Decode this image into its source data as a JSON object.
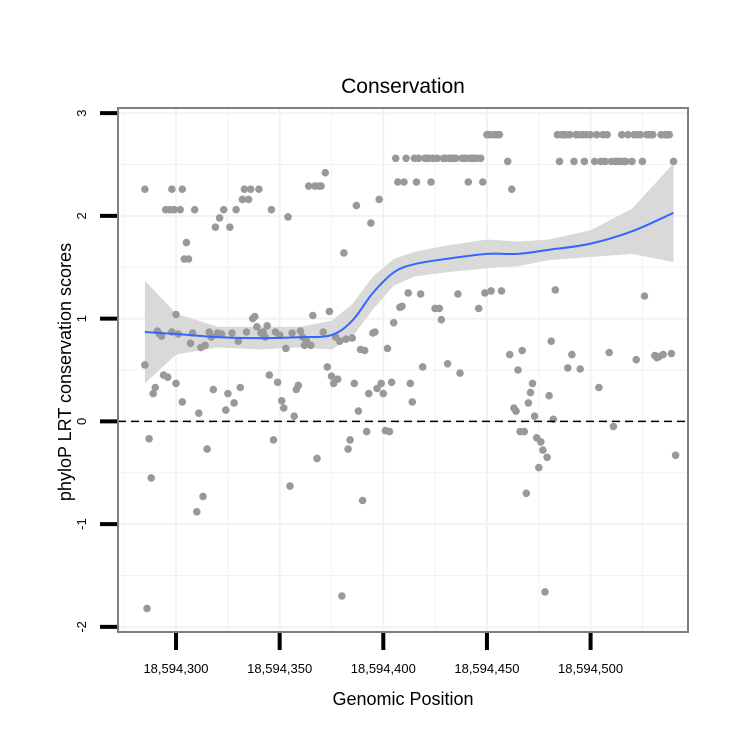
{
  "chart_data": {
    "type": "scatter",
    "title": "Conservation",
    "xlabel": "Genomic Position",
    "ylabel": "phyloP LRT conservation scores",
    "xlim": [
      18594272,
      18594547
    ],
    "ylim": [
      -2.05,
      3.05
    ],
    "x_ticks": [
      18594300,
      18594350,
      18594400,
      18594450,
      18594500
    ],
    "x_tick_labels": [
      "18,594,300",
      "18,594,350",
      "18,594,400",
      "18,594,450",
      "18,594,500"
    ],
    "y_ticks": [
      -2,
      -1,
      0,
      1,
      2,
      3
    ],
    "y_tick_labels": [
      "-2",
      "-1",
      "0",
      "1",
      "2",
      "3"
    ],
    "reference_line": {
      "y": 0,
      "style": "dashed"
    },
    "colors": {
      "points": "#999999",
      "smooth": "#3366FF",
      "ribbon": "#D9D9D9",
      "frame": "#7F7F7F",
      "grid": "#F2F2F2"
    },
    "series": [
      {
        "name": "scores",
        "points": [
          [
            18594285,
            2.26
          ],
          [
            18594285,
            0.55
          ],
          [
            18594286,
            -1.82
          ],
          [
            18594287,
            -0.17
          ],
          [
            18594288,
            -0.55
          ],
          [
            18594289,
            0.27
          ],
          [
            18594290,
            0.33
          ],
          [
            18594291,
            0.88
          ],
          [
            18594292,
            0.85
          ],
          [
            18594293,
            0.83
          ],
          [
            18594294,
            0.45
          ],
          [
            18594295,
            2.06
          ],
          [
            18594296,
            0.43
          ],
          [
            18594297,
            2.06
          ],
          [
            18594298,
            2.26
          ],
          [
            18594298,
            0.87
          ],
          [
            18594299,
            2.06
          ],
          [
            18594300,
            1.04
          ],
          [
            18594300,
            0.37
          ],
          [
            18594301,
            0.85
          ],
          [
            18594302,
            2.06
          ],
          [
            18594303,
            2.26
          ],
          [
            18594303,
            0.19
          ],
          [
            18594304,
            1.58
          ],
          [
            18594305,
            1.74
          ],
          [
            18594306,
            1.58
          ],
          [
            18594307,
            0.76
          ],
          [
            18594308,
            0.86
          ],
          [
            18594309,
            2.06
          ],
          [
            18594310,
            -0.88
          ],
          [
            18594311,
            0.08
          ],
          [
            18594312,
            0.72
          ],
          [
            18594313,
            -0.73
          ],
          [
            18594314,
            0.74
          ],
          [
            18594315,
            -0.27
          ],
          [
            18594316,
            0.87
          ],
          [
            18594317,
            0.82
          ],
          [
            18594318,
            0.31
          ],
          [
            18594319,
            1.89
          ],
          [
            18594320,
            0.86
          ],
          [
            18594321,
            1.98
          ],
          [
            18594322,
            0.85
          ],
          [
            18594323,
            2.06
          ],
          [
            18594324,
            0.11
          ],
          [
            18594325,
            0.27
          ],
          [
            18594326,
            1.89
          ],
          [
            18594327,
            0.86
          ],
          [
            18594328,
            0.18
          ],
          [
            18594329,
            2.06
          ],
          [
            18594330,
            0.78
          ],
          [
            18594331,
            0.33
          ],
          [
            18594332,
            2.16
          ],
          [
            18594333,
            2.26
          ],
          [
            18594334,
            0.87
          ],
          [
            18594335,
            2.16
          ],
          [
            18594336,
            2.26
          ],
          [
            18594337,
            1.0
          ],
          [
            18594338,
            1.02
          ],
          [
            18594339,
            0.92
          ],
          [
            18594340,
            2.26
          ],
          [
            18594341,
            0.86
          ],
          [
            18594342,
            0.87
          ],
          [
            18594343,
            0.82
          ],
          [
            18594344,
            0.93
          ],
          [
            18594345,
            0.45
          ],
          [
            18594346,
            2.06
          ],
          [
            18594347,
            -0.18
          ],
          [
            18594348,
            0.87
          ],
          [
            18594349,
            0.38
          ],
          [
            18594350,
            0.84
          ],
          [
            18594351,
            0.2
          ],
          [
            18594352,
            0.13
          ],
          [
            18594353,
            0.71
          ],
          [
            18594354,
            1.99
          ],
          [
            18594355,
            -0.63
          ],
          [
            18594356,
            0.86
          ],
          [
            18594357,
            0.05
          ],
          [
            18594358,
            0.31
          ],
          [
            18594359,
            0.35
          ],
          [
            18594360,
            0.88
          ],
          [
            18594361,
            0.82
          ],
          [
            18594362,
            0.74
          ],
          [
            18594363,
            0.78
          ],
          [
            18594364,
            2.29
          ],
          [
            18594365,
            0.74
          ],
          [
            18594366,
            1.03
          ],
          [
            18594367,
            2.29
          ],
          [
            18594368,
            -0.36
          ],
          [
            18594369,
            2.29
          ],
          [
            18594370,
            2.29
          ],
          [
            18594371,
            0.87
          ],
          [
            18594372,
            2.42
          ],
          [
            18594373,
            0.53
          ],
          [
            18594374,
            1.07
          ],
          [
            18594375,
            0.44
          ],
          [
            18594376,
            0.37
          ],
          [
            18594377,
            0.82
          ],
          [
            18594378,
            0.41
          ],
          [
            18594379,
            0.78
          ],
          [
            18594380,
            -1.7
          ],
          [
            18594381,
            1.64
          ],
          [
            18594382,
            0.8
          ],
          [
            18594383,
            -0.27
          ],
          [
            18594384,
            -0.18
          ],
          [
            18594385,
            0.81
          ],
          [
            18594386,
            0.37
          ],
          [
            18594387,
            2.1
          ],
          [
            18594388,
            0.1
          ],
          [
            18594389,
            0.7
          ],
          [
            18594390,
            -0.77
          ],
          [
            18594391,
            0.69
          ],
          [
            18594392,
            -0.1
          ],
          [
            18594393,
            0.27
          ],
          [
            18594394,
            1.93
          ],
          [
            18594395,
            0.86
          ],
          [
            18594396,
            0.87
          ],
          [
            18594397,
            0.32
          ],
          [
            18594398,
            2.16
          ],
          [
            18594399,
            0.37
          ],
          [
            18594400,
            0.27
          ],
          [
            18594401,
            -0.09
          ],
          [
            18594402,
            0.71
          ],
          [
            18594403,
            -0.1
          ],
          [
            18594404,
            0.38
          ],
          [
            18594405,
            0.96
          ],
          [
            18594406,
            2.56
          ],
          [
            18594407,
            2.33
          ],
          [
            18594408,
            1.11
          ],
          [
            18594409,
            1.12
          ],
          [
            18594410,
            2.33
          ],
          [
            18594411,
            2.56
          ],
          [
            18594412,
            1.25
          ],
          [
            18594413,
            0.37
          ],
          [
            18594414,
            0.19
          ],
          [
            18594415,
            2.56
          ],
          [
            18594416,
            2.33
          ],
          [
            18594417,
            2.56
          ],
          [
            18594418,
            1.24
          ],
          [
            18594419,
            0.53
          ],
          [
            18594420,
            2.56
          ],
          [
            18594421,
            2.56
          ],
          [
            18594422,
            2.56
          ],
          [
            18594423,
            2.33
          ],
          [
            18594424,
            2.56
          ],
          [
            18594425,
            1.1
          ],
          [
            18594426,
            2.56
          ],
          [
            18594427,
            1.1
          ],
          [
            18594428,
            0.99
          ],
          [
            18594429,
            2.56
          ],
          [
            18594430,
            2.56
          ],
          [
            18594431,
            0.56
          ],
          [
            18594432,
            2.56
          ],
          [
            18594433,
            2.56
          ],
          [
            18594434,
            2.56
          ],
          [
            18594435,
            2.56
          ],
          [
            18594436,
            1.24
          ],
          [
            18594437,
            0.47
          ],
          [
            18594438,
            2.56
          ],
          [
            18594439,
            2.56
          ],
          [
            18594440,
            2.56
          ],
          [
            18594441,
            2.33
          ],
          [
            18594442,
            2.56
          ],
          [
            18594443,
            2.56
          ],
          [
            18594444,
            2.56
          ],
          [
            18594445,
            2.56
          ],
          [
            18594446,
            1.1
          ],
          [
            18594447,
            2.56
          ],
          [
            18594448,
            2.33
          ],
          [
            18594449,
            1.25
          ],
          [
            18594450,
            2.79
          ],
          [
            18594451,
            2.79
          ],
          [
            18594452,
            1.27
          ],
          [
            18594453,
            2.79
          ],
          [
            18594454,
            2.79
          ],
          [
            18594455,
            2.79
          ],
          [
            18594456,
            2.79
          ],
          [
            18594457,
            1.27
          ],
          [
            18594460,
            2.53
          ],
          [
            18594461,
            0.65
          ],
          [
            18594462,
            2.26
          ],
          [
            18594463,
            0.13
          ],
          [
            18594464,
            0.1
          ],
          [
            18594465,
            0.5
          ],
          [
            18594466,
            -0.1
          ],
          [
            18594467,
            0.69
          ],
          [
            18594468,
            -0.1
          ],
          [
            18594469,
            -0.7
          ],
          [
            18594470,
            0.18
          ],
          [
            18594471,
            0.28
          ],
          [
            18594472,
            0.37
          ],
          [
            18594473,
            0.05
          ],
          [
            18594474,
            -0.16
          ],
          [
            18594475,
            -0.45
          ],
          [
            18594476,
            -0.2
          ],
          [
            18594477,
            -0.28
          ],
          [
            18594478,
            -1.66
          ],
          [
            18594479,
            -0.35
          ],
          [
            18594480,
            0.25
          ],
          [
            18594481,
            0.78
          ],
          [
            18594482,
            0.02
          ],
          [
            18594483,
            1.28
          ],
          [
            18594484,
            2.79
          ],
          [
            18594485,
            2.53
          ],
          [
            18594486,
            2.79
          ],
          [
            18594487,
            2.79
          ],
          [
            18594488,
            2.79
          ],
          [
            18594489,
            0.52
          ],
          [
            18594490,
            2.79
          ],
          [
            18594491,
            0.65
          ],
          [
            18594492,
            2.53
          ],
          [
            18594493,
            2.79
          ],
          [
            18594494,
            2.79
          ],
          [
            18594495,
            0.51
          ],
          [
            18594496,
            2.79
          ],
          [
            18594497,
            2.53
          ],
          [
            18594498,
            2.79
          ],
          [
            18594500,
            2.79
          ],
          [
            18594502,
            2.53
          ],
          [
            18594503,
            2.79
          ],
          [
            18594504,
            0.33
          ],
          [
            18594505,
            2.53
          ],
          [
            18594506,
            2.79
          ],
          [
            18594507,
            2.53
          ],
          [
            18594508,
            2.79
          ],
          [
            18594509,
            0.67
          ],
          [
            18594510,
            2.53
          ],
          [
            18594511,
            -0.05
          ],
          [
            18594512,
            2.53
          ],
          [
            18594513,
            2.53
          ],
          [
            18594514,
            2.53
          ],
          [
            18594515,
            2.79
          ],
          [
            18594516,
            2.53
          ],
          [
            18594517,
            2.53
          ],
          [
            18594518,
            2.79
          ],
          [
            18594520,
            2.53
          ],
          [
            18594521,
            2.79
          ],
          [
            18594522,
            0.6
          ],
          [
            18594523,
            2.79
          ],
          [
            18594524,
            2.79
          ],
          [
            18594525,
            2.53
          ],
          [
            18594526,
            1.22
          ],
          [
            18594527,
            2.79
          ],
          [
            18594528,
            2.79
          ],
          [
            18594529,
            2.79
          ],
          [
            18594530,
            2.79
          ],
          [
            18594531,
            0.64
          ],
          [
            18594532,
            0.62
          ],
          [
            18594533,
            0.63
          ],
          [
            18594534,
            2.79
          ],
          [
            18594535,
            0.65
          ],
          [
            18594536,
            2.79
          ],
          [
            18594537,
            2.79
          ],
          [
            18594538,
            2.79
          ],
          [
            18594539,
            0.66
          ],
          [
            18594540,
            2.53
          ],
          [
            18594541,
            -0.33
          ]
        ]
      }
    ],
    "smooth": {
      "x": [
        18594285,
        18594300,
        18594320,
        18594340,
        18594360,
        18594375,
        18594385,
        18594395,
        18594405,
        18594415,
        18594430,
        18594450,
        18594465,
        18594480,
        18594500,
        18594520,
        18594540
      ],
      "y": [
        0.87,
        0.85,
        0.82,
        0.81,
        0.82,
        0.84,
        0.98,
        1.25,
        1.45,
        1.53,
        1.58,
        1.63,
        1.63,
        1.67,
        1.73,
        1.85,
        2.03
      ],
      "lower": [
        0.37,
        0.65,
        0.72,
        0.7,
        0.72,
        0.7,
        0.82,
        1.09,
        1.32,
        1.41,
        1.45,
        1.49,
        1.51,
        1.57,
        1.6,
        1.63,
        1.55
      ],
      "upper": [
        1.37,
        1.05,
        0.92,
        0.92,
        0.92,
        0.98,
        1.14,
        1.41,
        1.58,
        1.65,
        1.71,
        1.77,
        1.75,
        1.77,
        1.86,
        2.07,
        2.51
      ]
    }
  }
}
